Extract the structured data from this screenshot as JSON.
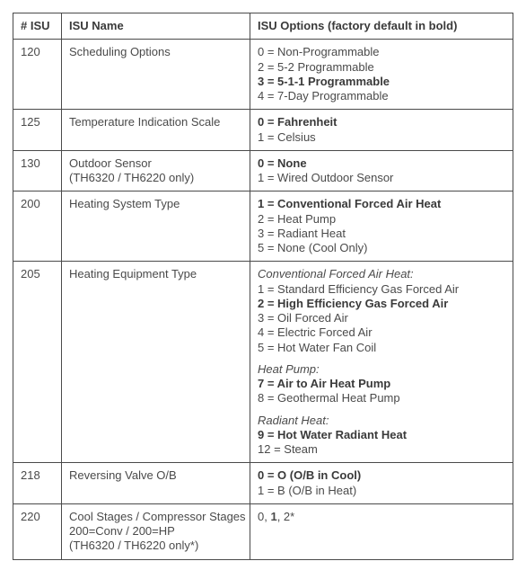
{
  "header": {
    "isu_num": "# ISU",
    "isu_name": "ISU Name",
    "isu_options": "ISU Options (factory default in bold)"
  },
  "rows": {
    "r120": {
      "num": "120",
      "name": "Scheduling Options",
      "opts": [
        {
          "text": "0 = Non-Programmable"
        },
        {
          "text": "2 = 5-2 Programmable"
        },
        {
          "text": "3 = 5-1-1 Programmable",
          "bold": true
        },
        {
          "text": "4 = 7-Day Programmable"
        }
      ]
    },
    "r125": {
      "num": "125",
      "name": "Temperature Indication Scale",
      "opts": [
        {
          "text": "0 = Fahrenheit",
          "bold": true
        },
        {
          "text": "1 = Celsius"
        }
      ]
    },
    "r130": {
      "num": "130",
      "name_l1": "Outdoor Sensor",
      "name_l2": "(TH6320 / TH6220 only)",
      "opts": [
        {
          "text": "0 = None",
          "bold": true
        },
        {
          "text": "1 = Wired Outdoor Sensor"
        }
      ]
    },
    "r200": {
      "num": "200",
      "name": "Heating System Type",
      "opts": [
        {
          "text": "1 = Conventional Forced Air Heat",
          "bold": true
        },
        {
          "text": "2 = Heat Pump"
        },
        {
          "text": "3 = Radiant Heat"
        },
        {
          "text": "5 = None (Cool Only)"
        }
      ]
    },
    "r205": {
      "num": "205",
      "name": "Heating Equipment Type",
      "g1_head": "Conventional Forced Air Heat:",
      "g1": [
        {
          "text": "1 = Standard Efficiency Gas Forced Air"
        },
        {
          "text": "2 = High Efficiency Gas Forced Air",
          "bold": true
        },
        {
          "text": "3 = Oil Forced Air"
        },
        {
          "text": "4 = Electric Forced Air"
        },
        {
          "text": "5 = Hot Water Fan Coil"
        }
      ],
      "g2_head": "Heat Pump:",
      "g2": [
        {
          "text": "7 = Air to Air Heat Pump",
          "bold": true
        },
        {
          "text": "8 = Geothermal Heat Pump"
        }
      ],
      "g3_head": "Radiant Heat:",
      "g3": [
        {
          "text": "9 = Hot Water Radiant Heat",
          "bold": true
        },
        {
          "text": "12 = Steam"
        }
      ]
    },
    "r218": {
      "num": "218",
      "name": "Reversing Valve O/B",
      "opts": [
        {
          "text": "0 = O (O/B in Cool)",
          "bold": true
        },
        {
          "text": "1 = B (O/B in Heat)"
        }
      ]
    },
    "r220": {
      "num": "220",
      "name_l1": "Cool Stages / Compressor Stages",
      "name_l2": "200=Conv / 200=HP",
      "name_l3": "(TH6320 / TH6220 only*)",
      "opt_pre": "0, ",
      "opt_bold": "1",
      "opt_post": ", 2*"
    }
  }
}
